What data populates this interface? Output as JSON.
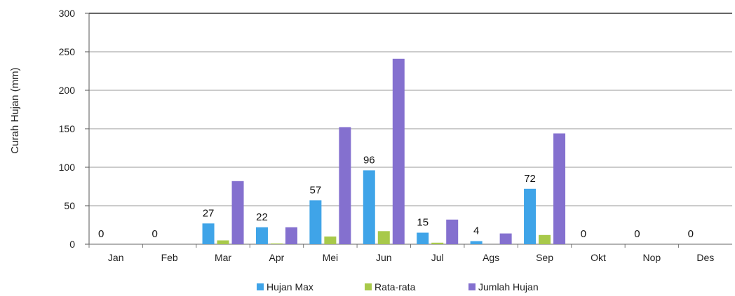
{
  "chart_data": {
    "type": "bar",
    "categories": [
      "Jan",
      "Feb",
      "Mar",
      "Apr",
      "Mei",
      "Jun",
      "Jul",
      "Ags",
      "Sep",
      "Okt",
      "Nop",
      "Des"
    ],
    "series": [
      {
        "name": "Hujan Max",
        "color": "#3fa4e8",
        "values": [
          0,
          0,
          27,
          22,
          57,
          96,
          15,
          4,
          72,
          0,
          0,
          0
        ]
      },
      {
        "name": "Rata-rata",
        "color": "#a8c94a",
        "values": [
          0,
          0,
          5,
          1,
          10,
          17,
          2,
          0,
          12,
          0,
          0,
          0
        ]
      },
      {
        "name": "Jumlah Hujan",
        "color": "#8470cf",
        "values": [
          0,
          0,
          82,
          22,
          152,
          241,
          32,
          14,
          144,
          0,
          0,
          0
        ]
      }
    ],
    "data_labels": [
      "0",
      "0",
      "27",
      "22",
      "57",
      "96",
      "15",
      "4",
      "72",
      "0",
      "0",
      "0"
    ],
    "title": "",
    "xlabel": "",
    "ylabel": "Curah Hujan (mm)",
    "ylim": [
      0,
      300
    ],
    "yticks": [
      0,
      50,
      100,
      150,
      200,
      250,
      300
    ],
    "grid": true,
    "legend_position": "bottom"
  }
}
